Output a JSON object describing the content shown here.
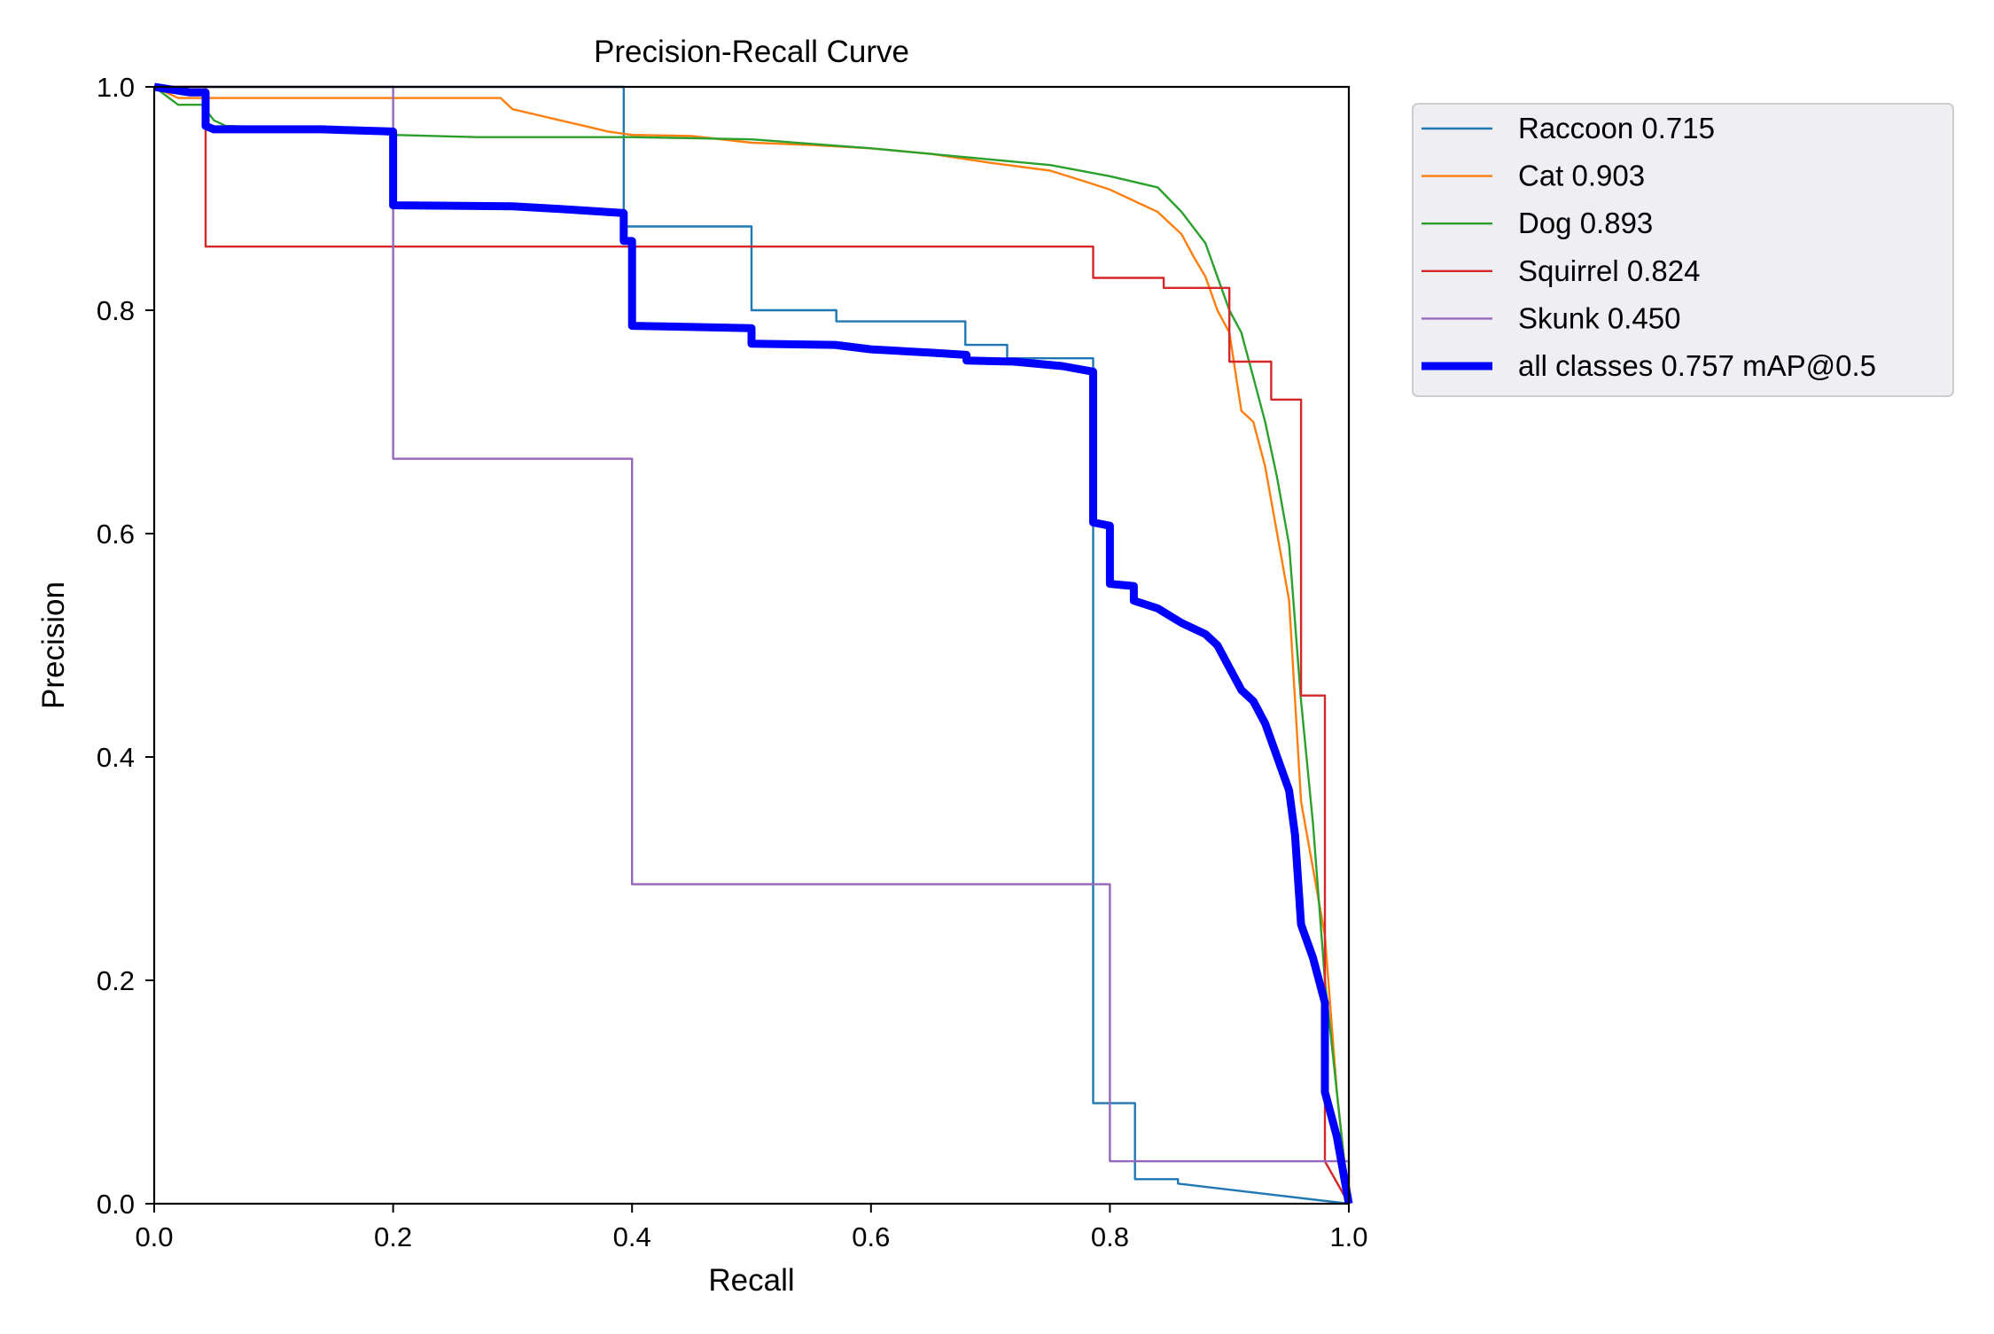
{
  "chart_data": {
    "type": "line",
    "title": "Precision-Recall Curve",
    "xlabel": "Recall",
    "ylabel": "Precision",
    "xlim": [
      0,
      1
    ],
    "ylim": [
      0,
      1
    ],
    "xticks": [
      "0.0",
      "0.2",
      "0.4",
      "0.6",
      "0.8",
      "1.0"
    ],
    "yticks": [
      "0.0",
      "0.2",
      "0.4",
      "0.6",
      "0.8",
      "1.0"
    ],
    "grid": false,
    "legend_position": "outside-top-right",
    "series": [
      {
        "name": "Raccoon 0.715",
        "color": "#1f77b4",
        "points": [
          [
            0,
            1.0
          ],
          [
            0.393,
            1.0
          ],
          [
            0.393,
            0.875
          ],
          [
            0.5,
            0.875
          ],
          [
            0.5,
            0.8
          ],
          [
            0.571,
            0.8
          ],
          [
            0.571,
            0.79
          ],
          [
            0.679,
            0.79
          ],
          [
            0.679,
            0.769
          ],
          [
            0.714,
            0.769
          ],
          [
            0.714,
            0.757
          ],
          [
            0.786,
            0.757
          ],
          [
            0.786,
            0.09
          ],
          [
            0.821,
            0.09
          ],
          [
            0.821,
            0.022
          ],
          [
            0.857,
            0.022
          ],
          [
            0.857,
            0.018
          ],
          [
            1.0,
            0.0
          ]
        ]
      },
      {
        "name": "Cat 0.903",
        "color": "#ff7f0e",
        "points": [
          [
            0,
            1.0
          ],
          [
            0.02,
            0.99
          ],
          [
            0.29,
            0.99
          ],
          [
            0.3,
            0.98
          ],
          [
            0.32,
            0.975
          ],
          [
            0.34,
            0.97
          ],
          [
            0.36,
            0.965
          ],
          [
            0.38,
            0.96
          ],
          [
            0.4,
            0.957
          ],
          [
            0.45,
            0.956
          ],
          [
            0.5,
            0.95
          ],
          [
            0.55,
            0.948
          ],
          [
            0.6,
            0.945
          ],
          [
            0.65,
            0.94
          ],
          [
            0.7,
            0.932
          ],
          [
            0.75,
            0.925
          ],
          [
            0.78,
            0.915
          ],
          [
            0.8,
            0.908
          ],
          [
            0.82,
            0.898
          ],
          [
            0.84,
            0.888
          ],
          [
            0.86,
            0.868
          ],
          [
            0.87,
            0.848
          ],
          [
            0.88,
            0.83
          ],
          [
            0.89,
            0.8
          ],
          [
            0.9,
            0.78
          ],
          [
            0.91,
            0.71
          ],
          [
            0.92,
            0.7
          ],
          [
            0.93,
            0.66
          ],
          [
            0.94,
            0.6
          ],
          [
            0.95,
            0.54
          ],
          [
            0.96,
            0.36
          ],
          [
            0.97,
            0.3
          ],
          [
            0.98,
            0.24
          ],
          [
            0.99,
            0.1
          ],
          [
            1.0,
            0.0
          ]
        ]
      },
      {
        "name": "Dog 0.893",
        "color": "#2ca02c",
        "points": [
          [
            0,
            1.0
          ],
          [
            0.02,
            0.984
          ],
          [
            0.04,
            0.984
          ],
          [
            0.05,
            0.97
          ],
          [
            0.06,
            0.965
          ],
          [
            0.15,
            0.962
          ],
          [
            0.2,
            0.957
          ],
          [
            0.27,
            0.955
          ],
          [
            0.4,
            0.955
          ],
          [
            0.5,
            0.953
          ],
          [
            0.6,
            0.945
          ],
          [
            0.7,
            0.935
          ],
          [
            0.75,
            0.93
          ],
          [
            0.8,
            0.92
          ],
          [
            0.84,
            0.91
          ],
          [
            0.86,
            0.888
          ],
          [
            0.88,
            0.86
          ],
          [
            0.89,
            0.83
          ],
          [
            0.9,
            0.8
          ],
          [
            0.91,
            0.78
          ],
          [
            0.92,
            0.74
          ],
          [
            0.93,
            0.7
          ],
          [
            0.94,
            0.65
          ],
          [
            0.95,
            0.59
          ],
          [
            0.96,
            0.45
          ],
          [
            0.97,
            0.34
          ],
          [
            0.98,
            0.2
          ],
          [
            0.99,
            0.1
          ],
          [
            1.0,
            0.0
          ]
        ]
      },
      {
        "name": "Squirrel 0.824",
        "color": "#d62728",
        "points": [
          [
            0,
            1.0
          ],
          [
            0.043,
            1.0
          ],
          [
            0.043,
            0.857
          ],
          [
            0.786,
            0.857
          ],
          [
            0.786,
            0.829
          ],
          [
            0.845,
            0.829
          ],
          [
            0.845,
            0.82
          ],
          [
            0.9,
            0.82
          ],
          [
            0.9,
            0.754
          ],
          [
            0.935,
            0.754
          ],
          [
            0.935,
            0.72
          ],
          [
            0.96,
            0.72
          ],
          [
            0.96,
            0.455
          ],
          [
            0.98,
            0.455
          ],
          [
            0.98,
            0.038
          ],
          [
            1.0,
            0.0
          ]
        ]
      },
      {
        "name": "Skunk 0.450",
        "color": "#9467bd",
        "points": [
          [
            0,
            1.0
          ],
          [
            0.2,
            1.0
          ],
          [
            0.2,
            0.667
          ],
          [
            0.4,
            0.667
          ],
          [
            0.4,
            0.286
          ],
          [
            0.8,
            0.286
          ],
          [
            0.8,
            0.038
          ],
          [
            1.0,
            0.038
          ],
          [
            1.0,
            0.0
          ]
        ]
      },
      {
        "name": "all classes 0.757 mAP@0.5",
        "color": "#0000ff",
        "bold": true,
        "points": [
          [
            0,
            1.0
          ],
          [
            0.03,
            0.995
          ],
          [
            0.043,
            0.995
          ],
          [
            0.043,
            0.965
          ],
          [
            0.05,
            0.962
          ],
          [
            0.14,
            0.962
          ],
          [
            0.2,
            0.96
          ],
          [
            0.2,
            0.894
          ],
          [
            0.3,
            0.893
          ],
          [
            0.35,
            0.89
          ],
          [
            0.393,
            0.887
          ],
          [
            0.393,
            0.862
          ],
          [
            0.4,
            0.862
          ],
          [
            0.4,
            0.786
          ],
          [
            0.5,
            0.784
          ],
          [
            0.5,
            0.77
          ],
          [
            0.57,
            0.769
          ],
          [
            0.6,
            0.765
          ],
          [
            0.65,
            0.762
          ],
          [
            0.68,
            0.76
          ],
          [
            0.68,
            0.755
          ],
          [
            0.72,
            0.754
          ],
          [
            0.76,
            0.75
          ],
          [
            0.786,
            0.745
          ],
          [
            0.786,
            0.61
          ],
          [
            0.8,
            0.607
          ],
          [
            0.8,
            0.555
          ],
          [
            0.82,
            0.553
          ],
          [
            0.82,
            0.54
          ],
          [
            0.84,
            0.533
          ],
          [
            0.86,
            0.52
          ],
          [
            0.88,
            0.51
          ],
          [
            0.89,
            0.5
          ],
          [
            0.9,
            0.48
          ],
          [
            0.91,
            0.46
          ],
          [
            0.92,
            0.45
          ],
          [
            0.93,
            0.43
          ],
          [
            0.94,
            0.4
          ],
          [
            0.95,
            0.37
          ],
          [
            0.955,
            0.33
          ],
          [
            0.96,
            0.25
          ],
          [
            0.97,
            0.22
          ],
          [
            0.975,
            0.2
          ],
          [
            0.98,
            0.18
          ],
          [
            0.98,
            0.1
          ],
          [
            0.99,
            0.06
          ],
          [
            1.0,
            0.0
          ]
        ]
      }
    ]
  }
}
